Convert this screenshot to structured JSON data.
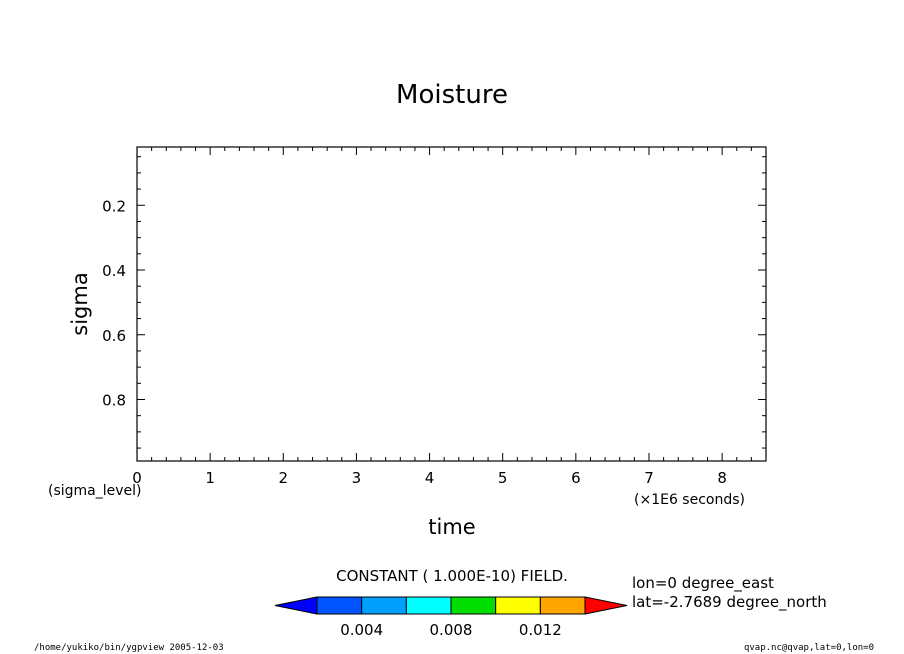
{
  "chart_data": {
    "type": "heatmap",
    "title": "Moisture",
    "xlabel": "time",
    "ylabel": "sigma",
    "x_unit_label": "(×1E6 seconds)",
    "y_unit_label": "(sigma_level)",
    "xlim": [
      0,
      8.6
    ],
    "ylim": [
      0.02,
      0.99
    ],
    "y_inverted": true,
    "x_ticks": [
      0,
      1,
      2,
      3,
      4,
      5,
      6,
      7,
      8
    ],
    "x_minor_step": 0.2,
    "y_ticks": [
      0.2,
      0.4,
      0.6,
      0.8
    ],
    "y_minor_step": 0.05,
    "grid": false,
    "field_message": "CONSTANT ( 1.000E-10) FIELD.",
    "colorbar": {
      "colors": [
        "#0000ff",
        "#0055ff",
        "#00a0ff",
        "#00ffff",
        "#00dd00",
        "#ffff00",
        "#ffa500",
        "#ff0000"
      ],
      "bounds": [
        0.002,
        0.004,
        0.006,
        0.008,
        0.01,
        0.012,
        0.014
      ],
      "labels": [
        {
          "value": 0.004,
          "text": "0.004"
        },
        {
          "value": 0.008,
          "text": "0.008"
        },
        {
          "value": 0.012,
          "text": "0.012"
        }
      ]
    },
    "info_lines": [
      "lon=0 degree_east",
      "lat=-2.7689 degree_north"
    ]
  },
  "footer": {
    "left": "/home/yukiko/bin/ygpview  2005-12-03",
    "right": "qvap.nc@qvap,lat=0,lon=0"
  }
}
